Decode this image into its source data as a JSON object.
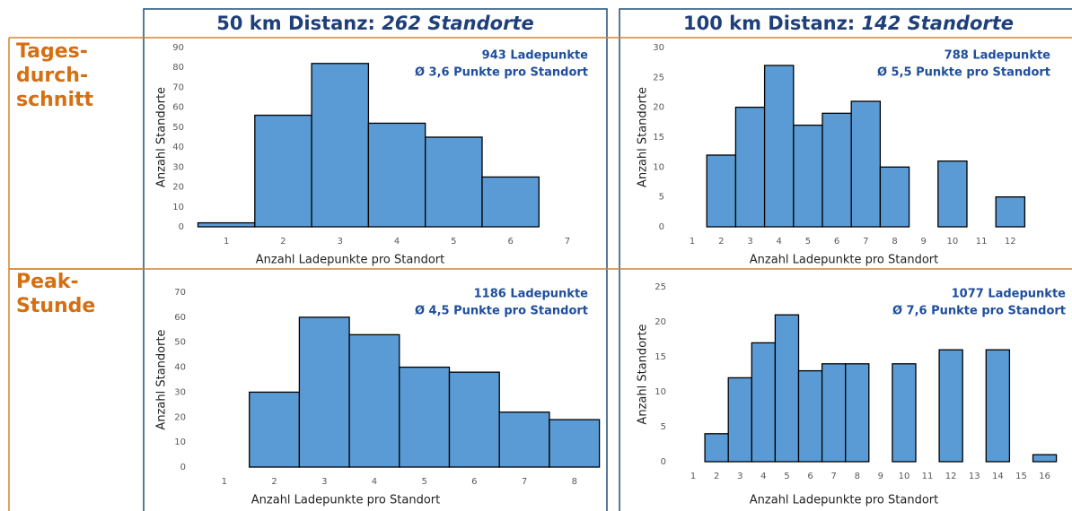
{
  "columns": [
    {
      "label": "50 km Distanz:",
      "count": "262 Standorte"
    },
    {
      "label": "100 km Distanz:",
      "count": "142 Standorte"
    }
  ],
  "rows": [
    [
      "Tages-",
      "durch-",
      "schnitt"
    ],
    [
      "Peak-",
      "Stunde"
    ]
  ],
  "chart_data": [
    {
      "type": "bar",
      "color": "#5b9bd5",
      "xlabel": "Anzahl Ladepunkte pro Standort",
      "ylabel": "Anzahl Standorte",
      "annotations": [
        "943 Ladepunkte",
        "Ø 3,6 Punkte pro Standort"
      ],
      "categories": [
        "1",
        "2",
        "3",
        "4",
        "5",
        "6",
        "7"
      ],
      "values": [
        2,
        56,
        82,
        52,
        45,
        25,
        0
      ],
      "ylim": [
        0,
        90
      ],
      "yticks": [
        0,
        10,
        20,
        30,
        40,
        50,
        60,
        70,
        80,
        90
      ]
    },
    {
      "type": "bar",
      "color": "#5b9bd5",
      "xlabel": "Anzahl Ladepunkte pro Standort",
      "ylabel": "Anzahl Standorte",
      "annotations": [
        "788 Ladepunkte",
        "Ø 5,5 Punkte pro Standort"
      ],
      "categories": [
        "1",
        "2",
        "3",
        "4",
        "5",
        "6",
        "7",
        "8",
        "9",
        "10",
        "11",
        "12"
      ],
      "values": [
        0,
        12,
        20,
        27,
        17,
        19,
        21,
        10,
        0,
        11,
        0,
        5
      ],
      "ylim": [
        0,
        30
      ],
      "yticks": [
        0,
        5,
        10,
        15,
        20,
        25,
        30
      ]
    },
    {
      "type": "bar",
      "color": "#5b9bd5",
      "xlabel": "Anzahl Ladepunkte pro Standort",
      "ylabel": "Anzahl Standorte",
      "annotations": [
        "1186 Ladepunkte",
        "Ø 4,5 Punkte pro Standort"
      ],
      "categories": [
        "1",
        "2",
        "3",
        "4",
        "5",
        "6",
        "7",
        "8"
      ],
      "values": [
        0,
        30,
        60,
        53,
        40,
        38,
        22,
        19
      ],
      "ylim": [
        0,
        70
      ],
      "yticks": [
        0,
        10,
        20,
        30,
        40,
        50,
        60,
        70
      ]
    },
    {
      "type": "bar",
      "color": "#5b9bd5",
      "xlabel": "Anzahl Ladepunkte pro Standort",
      "ylabel": "Anzahl Standorte",
      "annotations": [
        "1077 Ladepunkte",
        "Ø 7,6 Punkte pro Standort"
      ],
      "categories": [
        "1",
        "2",
        "3",
        "4",
        "5",
        "6",
        "7",
        "8",
        "9",
        "10",
        "11",
        "12",
        "13",
        "14",
        "15",
        "16"
      ],
      "values": [
        0,
        4,
        12,
        17,
        21,
        13,
        14,
        14,
        0,
        14,
        0,
        16,
        0,
        16,
        0,
        1
      ],
      "ylim": [
        0,
        25
      ],
      "yticks": [
        0,
        5,
        10,
        15,
        20,
        25
      ]
    }
  ]
}
